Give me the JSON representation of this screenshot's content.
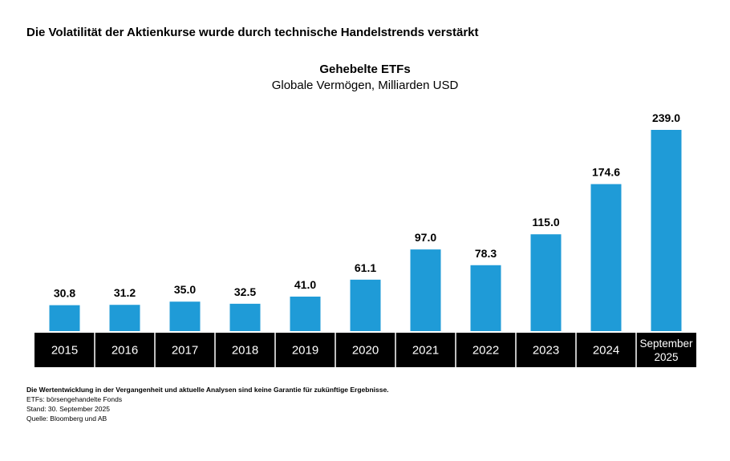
{
  "headline": "Die Volatilität der Aktienkurse wurde durch technische Handelstrends verstärkt",
  "chart_data": {
    "type": "bar",
    "title": "Gehebelte ETFs",
    "subtitle": "Globale Vermögen, Milliarden USD",
    "categories": [
      "2015",
      "2016",
      "2017",
      "2018",
      "2019",
      "2020",
      "2021",
      "2022",
      "2023",
      "2024",
      "September 2025"
    ],
    "category_lines": [
      [
        "2015"
      ],
      [
        "2016"
      ],
      [
        "2017"
      ],
      [
        "2018"
      ],
      [
        "2019"
      ],
      [
        "2020"
      ],
      [
        "2021"
      ],
      [
        "2022"
      ],
      [
        "2023"
      ],
      [
        "2024"
      ],
      [
        "September",
        "2025"
      ]
    ],
    "values": [
      30.8,
      31.2,
      35.0,
      32.5,
      41.0,
      61.1,
      97.0,
      78.3,
      115.0,
      174.6,
      239.0
    ],
    "labels": [
      "30.8",
      "31.2",
      "35.0",
      "32.5",
      "41.0",
      "61.1",
      "97.0",
      "78.3",
      "115.0",
      "174.6",
      "239.0"
    ],
    "xlabel": "",
    "ylabel": "",
    "ylim": [
      0,
      239.0
    ],
    "bar_color": "#1f9bd7",
    "axis_band_color": "#000000",
    "axis_text_color": "#ffffff"
  },
  "footer": {
    "disclaimer": "Die Wertentwicklung in der Vergangenheit und aktuelle Analysen sind keine Garantie für zukünftige Ergebnisse.",
    "abbreviation": "ETFs: börsengehandelte Fonds",
    "as_of": "Stand: 30. September 2025",
    "source": "Quelle: Bloomberg und AB"
  }
}
